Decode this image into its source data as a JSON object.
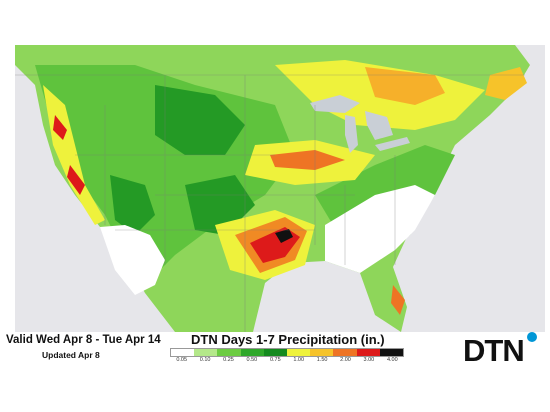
{
  "valid_text": "Valid Wed Apr 8 - Tue Apr 14",
  "updated_text": "Updated Apr 8",
  "title": "DTN Days 1-7 Precipitation (in.)",
  "logo": "DTN",
  "legend": {
    "labels": [
      "0.05",
      "0.10",
      "0.25",
      "0.50",
      "0.75",
      "1.00",
      "1.50",
      "2.00",
      "3.00",
      "4.00"
    ],
    "colors": [
      "#ffffff",
      "#b4e88a",
      "#6ccc42",
      "#2fa82a",
      "#148a1e",
      "#eef23c",
      "#f6c32a",
      "#ee7424",
      "#dd1a1a",
      "#111111"
    ]
  },
  "colors": {
    "water": "#e6e6ea",
    "border_lines": "#7a7a7a",
    "brand_blue": "#0096d6"
  }
}
